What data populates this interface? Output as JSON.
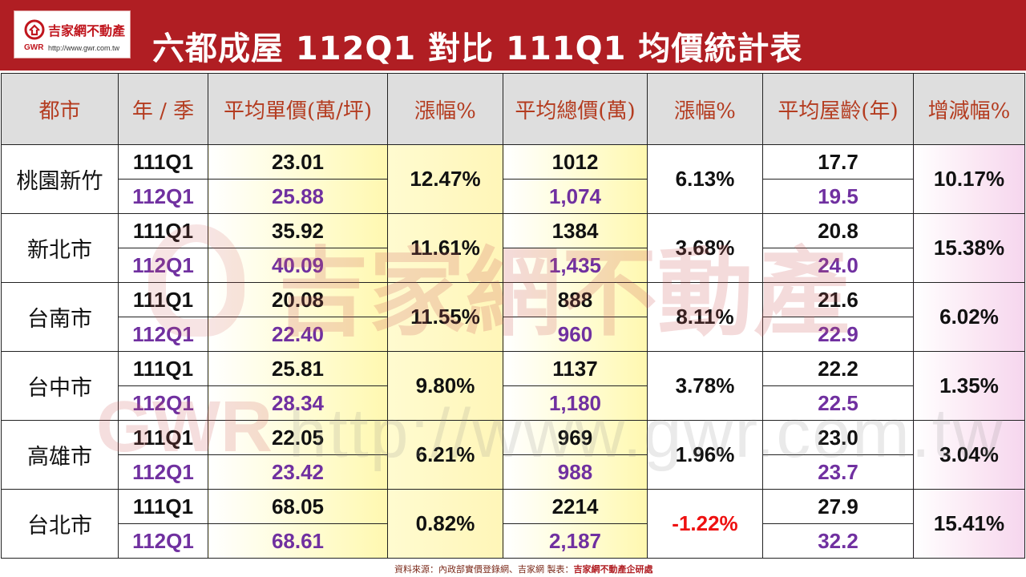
{
  "header": {
    "title": "六都成屋  112Q1 對比 111Q1 均價統計表",
    "logo_cn": "吉家網不動產",
    "logo_gwr": "GWR",
    "logo_url": "http://www.gwr.com.tw"
  },
  "watermark": {
    "cn": "吉家網不動產",
    "gwr": "GWR",
    "url": "http://www.gwr.com.tw"
  },
  "table": {
    "columns": [
      "都市",
      "年 / 季",
      "平均單價(萬/坪)",
      "漲幅%",
      "平均總價(萬)",
      "漲幅%",
      "平均屋齡(年)",
      "增減幅%"
    ],
    "rows": [
      {
        "city": "桃園新竹",
        "q_prev": "111Q1",
        "q_curr": "112Q1",
        "unit_prev": "23.01",
        "unit_curr": "25.88",
        "unit_change": "12.47%",
        "total_prev": "1012",
        "total_curr": "1,074",
        "total_change": "6.13%",
        "age_prev": "17.7",
        "age_curr": "19.5",
        "age_change": "10.17%"
      },
      {
        "city": "新北市",
        "q_prev": "111Q1",
        "q_curr": "112Q1",
        "unit_prev": "35.92",
        "unit_curr": "40.09",
        "unit_change": "11.61%",
        "total_prev": "1384",
        "total_curr": "1,435",
        "total_change": "3.68%",
        "age_prev": "20.8",
        "age_curr": "24.0",
        "age_change": "15.38%"
      },
      {
        "city": "台南市",
        "q_prev": "111Q1",
        "q_curr": "112Q1",
        "unit_prev": "20.08",
        "unit_curr": "22.40",
        "unit_change": "11.55%",
        "total_prev": "888",
        "total_curr": "960",
        "total_change": "8.11%",
        "age_prev": "21.6",
        "age_curr": "22.9",
        "age_change": "6.02%"
      },
      {
        "city": "台中市",
        "q_prev": "111Q1",
        "q_curr": "112Q1",
        "unit_prev": "25.81",
        "unit_curr": "28.34",
        "unit_change": "9.80%",
        "total_prev": "1137",
        "total_curr": "1,180",
        "total_change": "3.78%",
        "age_prev": "22.2",
        "age_curr": "22.5",
        "age_change": "1.35%"
      },
      {
        "city": "高雄市",
        "q_prev": "111Q1",
        "q_curr": "112Q1",
        "unit_prev": "22.05",
        "unit_curr": "23.42",
        "unit_change": "6.21%",
        "total_prev": "969",
        "total_curr": "988",
        "total_change": "1.96%",
        "age_prev": "23.0",
        "age_curr": "23.7",
        "age_change": "3.04%"
      },
      {
        "city": "台北市",
        "q_prev": "111Q1",
        "q_curr": "112Q1",
        "unit_prev": "68.05",
        "unit_curr": "68.61",
        "unit_change": "0.82%",
        "total_prev": "2214",
        "total_curr": "2,187",
        "total_change": "-1.22%",
        "age_prev": "27.9",
        "age_curr": "32.2",
        "age_change": "15.41%"
      }
    ]
  },
  "footer": {
    "source": "資料來源：內政部實價登錄網、吉家網   製表：",
    "maker": "吉家網不動產企研處"
  },
  "colors": {
    "header_bg": "#b01e23",
    "header_text": "#ffffff",
    "prev_year_text": "#111111",
    "curr_year_text": "#7030a0",
    "negative_text": "#ee1111"
  }
}
